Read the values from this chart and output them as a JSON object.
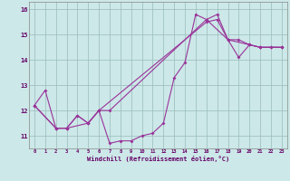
{
  "xlabel": "Windchill (Refroidissement éolien,°C)",
  "xlim": [
    -0.5,
    23.5
  ],
  "ylim": [
    10.5,
    16.3
  ],
  "yticks": [
    11,
    12,
    13,
    14,
    15,
    16
  ],
  "xticks": [
    0,
    1,
    2,
    3,
    4,
    5,
    6,
    7,
    8,
    9,
    10,
    11,
    12,
    13,
    14,
    15,
    16,
    17,
    18,
    19,
    20,
    21,
    22,
    23
  ],
  "bg_color": "#cce8e8",
  "line_color": "#993399",
  "grid_color": "#99bbbb",
  "line1_x": [
    0,
    1,
    2,
    3,
    4,
    5,
    6,
    7,
    8,
    9,
    10,
    11,
    12,
    13,
    14,
    15,
    16,
    17,
    18,
    20,
    21,
    23
  ],
  "line1_y": [
    12.2,
    12.8,
    11.3,
    11.3,
    11.8,
    11.5,
    12.0,
    10.7,
    10.8,
    10.8,
    11.0,
    11.1,
    11.5,
    13.3,
    13.9,
    15.8,
    15.6,
    15.8,
    14.8,
    14.6,
    14.5,
    14.5
  ],
  "line2_x": [
    0,
    2,
    3,
    4,
    5,
    6,
    7,
    16,
    18,
    19,
    20,
    21,
    22,
    23
  ],
  "line2_y": [
    12.2,
    11.3,
    11.3,
    11.8,
    11.5,
    12.0,
    12.0,
    15.6,
    14.8,
    14.8,
    14.6,
    14.5,
    14.5,
    14.5
  ],
  "line3_x": [
    0,
    2,
    3,
    5,
    6,
    16,
    17,
    18,
    19,
    20,
    21,
    22,
    23
  ],
  "line3_y": [
    12.2,
    11.3,
    11.3,
    11.5,
    12.0,
    15.5,
    15.6,
    14.8,
    14.1,
    14.6,
    14.5,
    14.5,
    14.5
  ]
}
